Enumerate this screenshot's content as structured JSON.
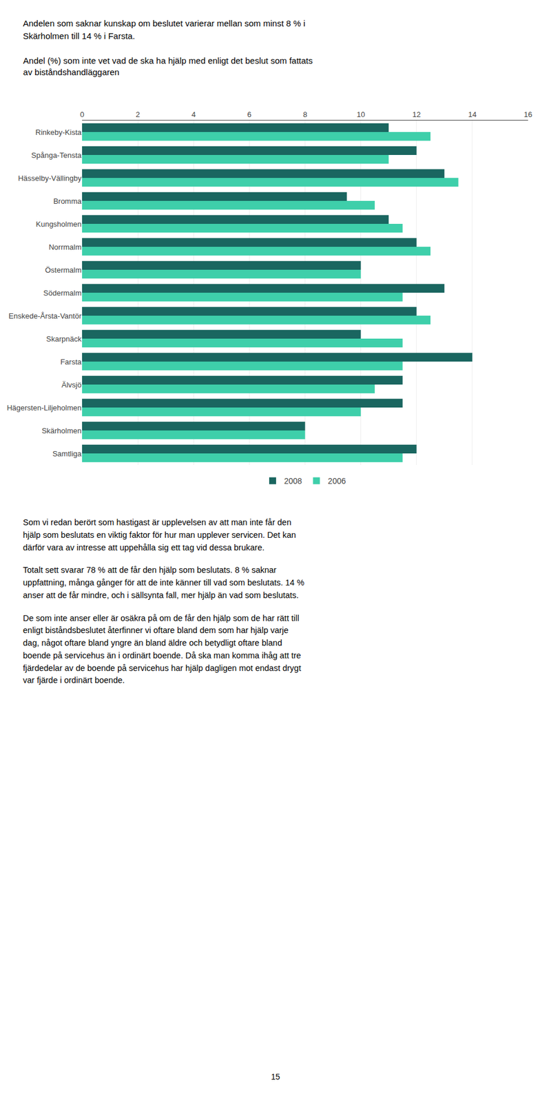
{
  "chart_data": {
    "type": "bar",
    "orientation": "horizontal",
    "title": "Andel (%) som inte vet vad de ska ha hjälp med enligt det beslut som fattats\nav biståndshandläggaren",
    "annotations": [
      "Andelen som saknar kunskap om beslutet varierar mellan som minst 8 % i\nSkärholmen till 14 % i Farsta.",
      "Som vi redan berört som hastigast är upplevelsen av att man inte får den\nhjälp som beslutats en viktig faktor för hur man upplever servicen. Det kan\ndärför vara av intresse att uppehålla sig ett tag vid dessa brukare.",
      "Totalt sett svarar 78 % att de får den hjälp som beslutats. 8 % saknar\nuppfattning, många gånger för att de inte känner till vad som beslutats. 14 %\nanser att de får mindre, och i sällsynta fall, mer hjälp än vad som beslutats.",
      "De som inte anser eller är osäkra på om de får den hjälp som de har rätt till\nenligt biståndsbeslutet återfinner vi oftare bland dem som har hjälp varje\ndag, något oftare bland yngre än bland äldre och betydligt oftare bland\nboende på servicehus än i ordinärt boende. Då ska man komma ihåg att tre\nfjärdedelar av de boende på servicehus har hjälp dagligen mot endast drygt\nvar fjärde i ordinärt boende.",
      "15"
    ],
    "categories": [
      "Rinkeby-Kista",
      "Spånga-Tensta",
      "Hässelby-Vällingby",
      "Bromma",
      "Kungsholmen",
      "Norrmalm",
      "Östermalm",
      "Södermalm",
      "Enskede-Årsta-Vantör",
      "Skarpnäck",
      "Farsta",
      "Älvsjö",
      "Hägersten-Liljeholmen",
      "Skärholmen",
      "Samtliga"
    ],
    "series": [
      {
        "name": "2008",
        "color": "#1a6660",
        "values": [
          11,
          12,
          13,
          9.5,
          11,
          12,
          10,
          13,
          12,
          10,
          14,
          11.5,
          11.5,
          8,
          12
        ]
      },
      {
        "name": "2006",
        "color": "#3ecfaa",
        "values": [
          12.5,
          11,
          13.5,
          10.5,
          11.5,
          12.5,
          10,
          11.5,
          12.5,
          11.5,
          11.5,
          10.5,
          10,
          8,
          11.5
        ]
      }
    ],
    "xlim": [
      0,
      16
    ],
    "xticks": [
      0,
      2,
      4,
      6,
      8,
      10,
      12,
      14,
      16
    ],
    "grid": true,
    "legend": "bottom"
  }
}
